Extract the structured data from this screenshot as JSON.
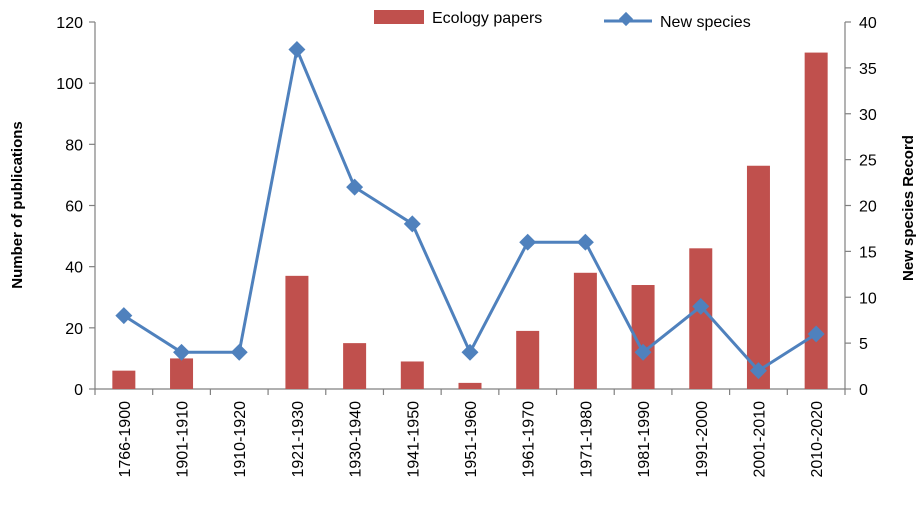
{
  "chart_data": {
    "type": "bar",
    "categories": [
      "1766-1900",
      "1901-1910",
      "1910-1920",
      "1921-1930",
      "1930-1940",
      "1941-1950",
      "1951-1960",
      "1961-1970",
      "1971-1980",
      "1981-1990",
      "1991-2000",
      "2001-2010",
      "2010-2020"
    ],
    "series": [
      {
        "name": "Ecology papers",
        "type": "bar",
        "axis": "left",
        "color": "#c0504d",
        "values": [
          6,
          10,
          0,
          37,
          15,
          9,
          2,
          19,
          38,
          34,
          46,
          73,
          110
        ]
      },
      {
        "name": "New species",
        "type": "line",
        "axis": "right",
        "color": "#4f81bd",
        "values": [
          8,
          4,
          4,
          37,
          22,
          18,
          4,
          16,
          16,
          4,
          9,
          2,
          6
        ]
      }
    ],
    "ylabel": "Number of publications",
    "y2label": "New species Record",
    "ylim": [
      0,
      120
    ],
    "y2lim": [
      0,
      40
    ],
    "yticks": [
      0,
      20,
      40,
      60,
      80,
      100,
      120
    ],
    "y2ticks": [
      0,
      5,
      10,
      15,
      20,
      25,
      30,
      35,
      40
    ],
    "legend_position": "top",
    "grid": false
  }
}
